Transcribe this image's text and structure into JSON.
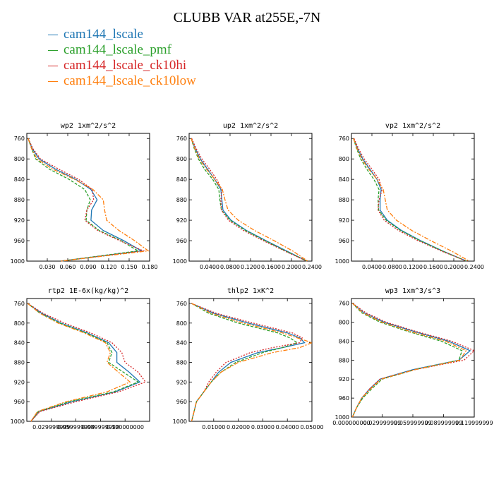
{
  "title": "CLUBB VAR at255E,-7N",
  "legend": [
    {
      "name": "cam144_lscale",
      "color": "#1f77b4"
    },
    {
      "name": "cam144_lscale_pmf",
      "color": "#2ca02c"
    },
    {
      "name": "cam144_lscale_ck10hi",
      "color": "#d62728"
    },
    {
      "name": "cam144_lscale_ck10low",
      "color": "#ff7f0e"
    }
  ],
  "chart_data": [
    {
      "type": "line",
      "title": "wp2   1xm^2/s^2",
      "ylim": [
        1000,
        750
      ],
      "yticks": [
        760,
        800,
        840,
        880,
        920,
        960,
        1000
      ],
      "ytick_labels": [
        "760",
        "800",
        "840",
        "880",
        "920",
        "960",
        "1000"
      ],
      "xlim": [
        0,
        0.18
      ],
      "xticks": [
        0.03,
        0.06,
        0.09,
        0.12,
        0.15,
        0.18
      ],
      "xtick_labels": [
        "0.030",
        "0.060",
        "0.090",
        "0.120",
        "0.150",
        "0.180"
      ],
      "y": [
        760,
        780,
        800,
        820,
        840,
        860,
        880,
        900,
        920,
        940,
        960,
        980,
        1000
      ],
      "series": [
        {
          "name": "cam144_lscale",
          "values": [
            0.002,
            0.008,
            0.018,
            0.042,
            0.072,
            0.094,
            0.103,
            0.095,
            0.094,
            0.112,
            0.142,
            0.168,
            0.05
          ]
        },
        {
          "name": "cam144_lscale_pmf",
          "values": [
            0.002,
            0.007,
            0.013,
            0.033,
            0.062,
            0.085,
            0.093,
            0.088,
            0.087,
            0.106,
            0.138,
            0.163,
            0.05
          ]
        },
        {
          "name": "cam144_lscale_ck10hi",
          "values": [
            0.002,
            0.009,
            0.02,
            0.047,
            0.076,
            0.096,
            0.098,
            0.088,
            0.085,
            0.104,
            0.136,
            0.171,
            0.05
          ]
        },
        {
          "name": "cam144_lscale_ck10low",
          "values": [
            0.002,
            0.007,
            0.015,
            0.038,
            0.07,
            0.097,
            0.112,
            0.114,
            0.117,
            0.135,
            0.158,
            0.178,
            0.05
          ]
        }
      ]
    },
    {
      "type": "line",
      "title": "up2   1xm^2/s^2",
      "ylim": [
        1000,
        750
      ],
      "yticks": [
        760,
        800,
        840,
        880,
        920,
        960,
        1000
      ],
      "ytick_labels": [
        "760",
        "800",
        "840",
        "880",
        "920",
        "960",
        "1000"
      ],
      "xlim": [
        0,
        0.24
      ],
      "xticks": [
        0.04,
        0.08,
        0.12,
        0.16,
        0.2,
        0.24
      ],
      "xtick_labels": [
        "0.0400",
        "0.0800",
        "0.1200",
        "0.1600",
        "0.2000",
        "0.2400"
      ],
      "y": [
        760,
        780,
        800,
        820,
        840,
        860,
        880,
        900,
        920,
        940,
        960,
        980,
        1000
      ],
      "series": [
        {
          "name": "cam144_lscale",
          "values": [
            0.004,
            0.012,
            0.022,
            0.036,
            0.05,
            0.062,
            0.064,
            0.066,
            0.082,
            0.112,
            0.15,
            0.19,
            0.23
          ]
        },
        {
          "name": "cam144_lscale_pmf",
          "values": [
            0.004,
            0.01,
            0.018,
            0.03,
            0.046,
            0.058,
            0.06,
            0.063,
            0.08,
            0.11,
            0.148,
            0.188,
            0.23
          ]
        },
        {
          "name": "cam144_lscale_ck10hi",
          "values": [
            0.005,
            0.014,
            0.025,
            0.04,
            0.054,
            0.064,
            0.062,
            0.063,
            0.077,
            0.106,
            0.145,
            0.186,
            0.23
          ]
        },
        {
          "name": "cam144_lscale_ck10low",
          "values": [
            0.004,
            0.011,
            0.02,
            0.034,
            0.05,
            0.065,
            0.07,
            0.076,
            0.096,
            0.128,
            0.166,
            0.202,
            0.232
          ]
        }
      ]
    },
    {
      "type": "line",
      "title": "vp2   1xm^2/s^2",
      "ylim": [
        1000,
        750
      ],
      "yticks": [
        760,
        800,
        840,
        880,
        920,
        960,
        1000
      ],
      "ytick_labels": [
        "760",
        "800",
        "840",
        "880",
        "920",
        "960",
        "1000"
      ],
      "xlim": [
        0,
        0.24
      ],
      "xticks": [
        0.04,
        0.08,
        0.12,
        0.16,
        0.2,
        0.24
      ],
      "xtick_labels": [
        "0.0400",
        "0.0800",
        "0.1200",
        "0.1600",
        "0.2000",
        "0.2400"
      ],
      "y": [
        760,
        780,
        800,
        820,
        840,
        860,
        880,
        900,
        920,
        940,
        960,
        980,
        1000
      ],
      "series": [
        {
          "name": "cam144_lscale",
          "values": [
            0.004,
            0.012,
            0.022,
            0.036,
            0.05,
            0.058,
            0.056,
            0.056,
            0.07,
            0.098,
            0.135,
            0.178,
            0.225
          ]
        },
        {
          "name": "cam144_lscale_pmf",
          "values": [
            0.004,
            0.01,
            0.018,
            0.03,
            0.044,
            0.054,
            0.052,
            0.053,
            0.068,
            0.096,
            0.134,
            0.177,
            0.225
          ]
        },
        {
          "name": "cam144_lscale_ck10hi",
          "values": [
            0.005,
            0.014,
            0.025,
            0.04,
            0.054,
            0.06,
            0.054,
            0.052,
            0.064,
            0.092,
            0.13,
            0.175,
            0.225
          ]
        },
        {
          "name": "cam144_lscale_ck10low",
          "values": [
            0.004,
            0.011,
            0.02,
            0.034,
            0.05,
            0.062,
            0.066,
            0.07,
            0.088,
            0.118,
            0.155,
            0.195,
            0.23
          ]
        }
      ]
    },
    {
      "type": "line",
      "title": "rtp2   1E-6x(kg/kg)^2",
      "ylim": [
        1000,
        750
      ],
      "yticks": [
        760,
        800,
        840,
        880,
        920,
        960,
        1000
      ],
      "ytick_labels": [
        "760",
        "800",
        "840",
        "880",
        "920",
        "960",
        "1000"
      ],
      "xlim": [
        0,
        0.15
      ],
      "xticks": [
        0.03,
        0.06,
        0.09,
        0.12
      ],
      "xtick_labels": [
        "0.029999999",
        "0.059999999",
        "0.089999999",
        "0.120000000"
      ],
      "y": [
        760,
        780,
        800,
        820,
        840,
        860,
        880,
        900,
        920,
        940,
        960,
        980,
        1000
      ],
      "series": [
        {
          "name": "cam144_lscale",
          "values": [
            0.001,
            0.018,
            0.042,
            0.074,
            0.1,
            0.11,
            0.11,
            0.125,
            0.138,
            0.108,
            0.055,
            0.015,
            0.005
          ]
        },
        {
          "name": "cam144_lscale_pmf",
          "values": [
            0.001,
            0.016,
            0.04,
            0.072,
            0.098,
            0.104,
            0.1,
            0.118,
            0.136,
            0.106,
            0.052,
            0.014,
            0.005
          ]
        },
        {
          "name": "cam144_lscale_ck10hi",
          "values": [
            0.001,
            0.02,
            0.046,
            0.078,
            0.104,
            0.116,
            0.12,
            0.136,
            0.145,
            0.112,
            0.06,
            0.016,
            0.005
          ]
        },
        {
          "name": "cam144_lscale_ck10low",
          "values": [
            0.001,
            0.016,
            0.038,
            0.07,
            0.096,
            0.102,
            0.098,
            0.112,
            0.126,
            0.098,
            0.048,
            0.013,
            0.005
          ]
        }
      ]
    },
    {
      "type": "line",
      "title": "thlp2   1xK^2",
      "ylim": [
        1000,
        750
      ],
      "yticks": [
        760,
        800,
        840,
        880,
        920,
        960,
        1000
      ],
      "ytick_labels": [
        "760",
        "800",
        "840",
        "880",
        "920",
        "960",
        "1000"
      ],
      "xlim": [
        0,
        0.05
      ],
      "xticks": [
        0.01,
        0.02,
        0.03,
        0.04,
        0.05
      ],
      "xtick_labels": [
        "0.01000",
        "0.02000",
        "0.03000",
        "0.04000",
        "0.05000"
      ],
      "y": [
        760,
        780,
        800,
        820,
        830,
        840,
        850,
        860,
        880,
        900,
        920,
        940,
        960,
        980,
        1000
      ],
      "series": [
        {
          "name": "cam144_lscale",
          "values": [
            0.001,
            0.01,
            0.024,
            0.04,
            0.045,
            0.047,
            0.038,
            0.028,
            0.017,
            0.012,
            0.009,
            0.006,
            0.003,
            0.002,
            0.001
          ]
        },
        {
          "name": "cam144_lscale_pmf",
          "values": [
            0.001,
            0.008,
            0.02,
            0.036,
            0.041,
            0.044,
            0.038,
            0.03,
            0.019,
            0.013,
            0.009,
            0.006,
            0.003,
            0.002,
            0.001
          ]
        },
        {
          "name": "cam144_lscale_ck10hi",
          "values": [
            0.001,
            0.011,
            0.026,
            0.042,
            0.046,
            0.045,
            0.034,
            0.025,
            0.015,
            0.011,
            0.008,
            0.006,
            0.003,
            0.002,
            0.001
          ]
        },
        {
          "name": "cam144_lscale_ck10low",
          "values": [
            0.001,
            0.009,
            0.022,
            0.038,
            0.044,
            0.05,
            0.045,
            0.034,
            0.02,
            0.013,
            0.009,
            0.006,
            0.003,
            0.002,
            0.001
          ]
        }
      ]
    },
    {
      "type": "line",
      "title": "wp3   1xm^3/s^3",
      "ylim": [
        1000,
        750
      ],
      "yticks": [
        760,
        800,
        840,
        880,
        920,
        960,
        1000
      ],
      "ytick_labels": [
        "760",
        "800",
        "840",
        "880",
        "920",
        "960",
        "1000"
      ],
      "xlim": [
        0,
        0.12
      ],
      "xticks": [
        0,
        0.03,
        0.06,
        0.09,
        0.12
      ],
      "xtick_labels": [
        "0.000000000",
        "0.029999999",
        "0.059999999",
        "0.089999999",
        "0.119999999"
      ],
      "y": [
        760,
        780,
        800,
        820,
        840,
        860,
        880,
        900,
        920,
        940,
        960,
        980,
        1000
      ],
      "series": [
        {
          "name": "cam144_lscale",
          "values": [
            0.001,
            0.012,
            0.032,
            0.062,
            0.095,
            0.116,
            0.105,
            0.06,
            0.028,
            0.018,
            0.01,
            0.005,
            0.001
          ]
        },
        {
          "name": "cam144_lscale_pmf",
          "values": [
            0.001,
            0.01,
            0.028,
            0.056,
            0.088,
            0.108,
            0.105,
            0.062,
            0.03,
            0.02,
            0.011,
            0.005,
            0.001
          ]
        },
        {
          "name": "cam144_lscale_ck10hi",
          "values": [
            0.001,
            0.014,
            0.034,
            0.064,
            0.098,
            0.12,
            0.11,
            0.062,
            0.028,
            0.018,
            0.01,
            0.005,
            0.001
          ]
        },
        {
          "name": "cam144_lscale_ck10low",
          "values": [
            0.001,
            0.011,
            0.03,
            0.058,
            0.092,
            0.112,
            0.106,
            0.062,
            0.029,
            0.019,
            0.01,
            0.005,
            0.001
          ]
        }
      ]
    }
  ]
}
